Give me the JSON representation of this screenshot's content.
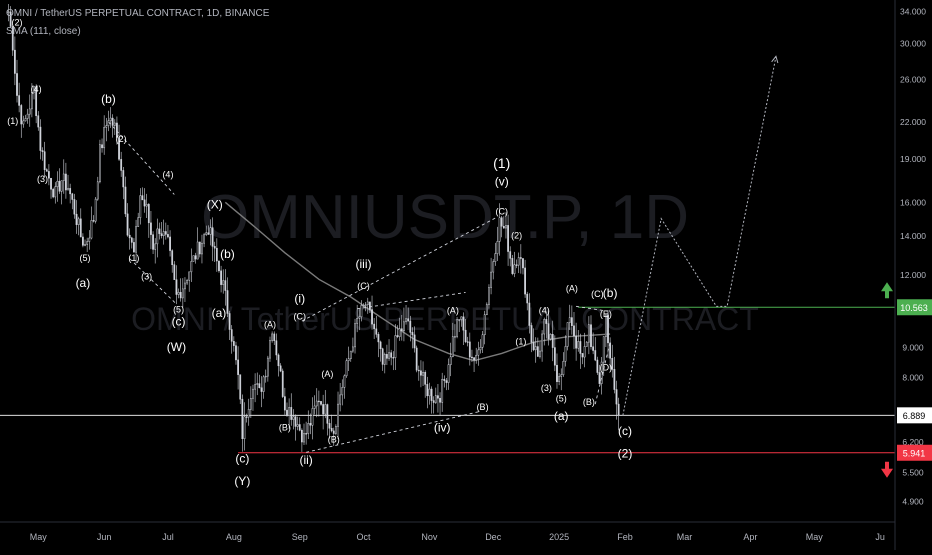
{
  "header": {
    "title": "OMNI / TetherUS PERPETUAL CONTRACT, 1D, BINANCE",
    "indicator": "SMA (111, close)"
  },
  "watermark": {
    "symbol": "OMNIUSDT.P, 1D",
    "name": "OMNI / TetherUS PERPETUAL CONTRACT"
  },
  "colors": {
    "background": "#000000",
    "bull": "#d1d4dc",
    "bear": "#d1d4dc",
    "sma": "#7a7a7a",
    "resistance": "#4caf50",
    "support": "#f23645",
    "current_price": "#ffffff",
    "projection": "#b2b5be"
  },
  "chart_data": {
    "type": "candlestick",
    "y_scale": "log",
    "ylim": [
      4.7,
      34.5
    ],
    "y_ticks": [
      34.0,
      30.0,
      26.0,
      22.0,
      19.0,
      16.0,
      14.0,
      12.0,
      10.563,
      9.0,
      8.0,
      6.889,
      6.2,
      5.941,
      5.5,
      4.9
    ],
    "y_tick_labels": [
      "34.000",
      "30.000",
      "26.000",
      "22.000",
      "19.000",
      "16.000",
      "14.000",
      "12.000",
      "10.563",
      "9.000",
      "8.000",
      "6.889",
      "6.200",
      "5.941",
      "5.500",
      "4.900"
    ],
    "x_labels": [
      "May",
      "Jun",
      "Jul",
      "Aug",
      "Sep",
      "Oct",
      "Nov",
      "Dec",
      "2025",
      "Feb",
      "Mar",
      "Apr",
      "May",
      "Ju"
    ],
    "x_label_dates": [
      "2024-05-01",
      "2024-06-01",
      "2024-07-01",
      "2024-08-01",
      "2024-09-01",
      "2024-10-01",
      "2024-11-01",
      "2024-12-01",
      "2025-01-01",
      "2025-02-01",
      "2025-03-01",
      "2025-04-01",
      "2025-05-01",
      "2025-06-01"
    ],
    "xlim": [
      "2024-04-13",
      "2025-06-08"
    ],
    "price_path": [
      [
        "2024-04-17",
        34.0
      ],
      [
        "2024-04-19",
        30.0
      ],
      [
        "2024-04-21",
        24.5
      ],
      [
        "2024-04-24",
        21.5
      ],
      [
        "2024-04-27",
        23.5
      ],
      [
        "2024-04-29",
        25.0
      ],
      [
        "2024-05-02",
        20.0
      ],
      [
        "2024-05-05",
        18.0
      ],
      [
        "2024-05-09",
        16.5
      ],
      [
        "2024-05-12",
        17.5
      ],
      [
        "2024-05-15",
        17.0
      ],
      [
        "2024-05-18",
        15.5
      ],
      [
        "2024-05-21",
        14.0
      ],
      [
        "2024-05-23",
        13.5
      ],
      [
        "2024-05-27",
        15.0
      ],
      [
        "2024-05-30",
        19.5
      ],
      [
        "2024-06-03",
        22.5
      ],
      [
        "2024-06-06",
        21.5
      ],
      [
        "2024-06-09",
        18.5
      ],
      [
        "2024-06-12",
        14.5
      ],
      [
        "2024-06-15",
        13.0
      ],
      [
        "2024-06-18",
        16.5
      ],
      [
        "2024-06-21",
        15.5
      ],
      [
        "2024-06-24",
        13.5
      ],
      [
        "2024-06-27",
        14.5
      ],
      [
        "2024-07-01",
        13.5
      ],
      [
        "2024-07-05",
        11.0
      ],
      [
        "2024-07-08",
        11.5
      ],
      [
        "2024-07-12",
        12.5
      ],
      [
        "2024-07-16",
        13.5
      ],
      [
        "2024-07-20",
        14.5
      ],
      [
        "2024-07-23",
        13.0
      ],
      [
        "2024-07-27",
        11.5
      ],
      [
        "2024-07-30",
        10.0
      ],
      [
        "2024-08-03",
        8.0
      ],
      [
        "2024-08-05",
        6.4
      ],
      [
        "2024-08-07",
        7.0
      ],
      [
        "2024-08-10",
        7.9
      ],
      [
        "2024-08-13",
        7.5
      ],
      [
        "2024-08-16",
        8.3
      ],
      [
        "2024-08-19",
        9.8
      ],
      [
        "2024-08-22",
        8.5
      ],
      [
        "2024-08-25",
        7.2
      ],
      [
        "2024-08-29",
        6.9
      ],
      [
        "2024-09-03",
        6.3
      ],
      [
        "2024-09-06",
        6.7
      ],
      [
        "2024-09-10",
        7.4
      ],
      [
        "2024-09-13",
        7.0
      ],
      [
        "2024-09-17",
        6.5
      ],
      [
        "2024-09-20",
        7.5
      ],
      [
        "2024-09-24",
        8.6
      ],
      [
        "2024-09-28",
        10.0
      ],
      [
        "2024-10-02",
        10.7
      ],
      [
        "2024-10-06",
        9.7
      ],
      [
        "2024-10-10",
        8.4
      ],
      [
        "2024-10-14",
        8.7
      ],
      [
        "2024-10-18",
        9.6
      ],
      [
        "2024-10-22",
        10.0
      ],
      [
        "2024-10-26",
        8.5
      ],
      [
        "2024-10-30",
        7.7
      ],
      [
        "2024-11-03",
        7.4
      ],
      [
        "2024-11-06",
        7.5
      ],
      [
        "2024-11-09",
        8.1
      ],
      [
        "2024-11-12",
        9.3
      ],
      [
        "2024-11-15",
        10.2
      ],
      [
        "2024-11-19",
        9.0
      ],
      [
        "2024-11-23",
        8.5
      ],
      [
        "2024-11-26",
        9.7
      ],
      [
        "2024-11-29",
        11.5
      ],
      [
        "2024-12-02",
        13.5
      ],
      [
        "2024-12-04",
        14.8
      ],
      [
        "2024-12-07",
        14.2
      ],
      [
        "2024-12-10",
        12.3
      ],
      [
        "2024-12-13",
        13.2
      ],
      [
        "2024-12-16",
        11.5
      ],
      [
        "2024-12-19",
        9.3
      ],
      [
        "2024-12-22",
        8.7
      ],
      [
        "2024-12-25",
        9.8
      ],
      [
        "2024-12-28",
        9.2
      ],
      [
        "2024-12-31",
        8.1
      ],
      [
        "2025-01-03",
        8.4
      ],
      [
        "2025-01-06",
        10.3
      ],
      [
        "2025-01-09",
        9.2
      ],
      [
        "2025-01-12",
        8.5
      ],
      [
        "2025-01-15",
        9.8
      ],
      [
        "2025-01-18",
        8.3
      ],
      [
        "2025-01-20",
        7.9
      ],
      [
        "2025-01-23",
        10.2
      ],
      [
        "2025-01-25",
        8.7
      ],
      [
        "2025-01-27",
        7.5
      ],
      [
        "2025-01-29",
        6.889
      ]
    ],
    "sma_111": [
      [
        "2024-07-28",
        16.0
      ],
      [
        "2024-08-10",
        14.6
      ],
      [
        "2024-08-25",
        13.1
      ],
      [
        "2024-09-10",
        11.8
      ],
      [
        "2024-09-25",
        11.0
      ],
      [
        "2024-10-10",
        10.1
      ],
      [
        "2024-10-25",
        9.3
      ],
      [
        "2024-11-10",
        8.8
      ],
      [
        "2024-11-22",
        8.55
      ],
      [
        "2024-12-05",
        8.8
      ],
      [
        "2024-12-20",
        9.2
      ],
      [
        "2025-01-05",
        9.4
      ],
      [
        "2025-01-25",
        9.5
      ]
    ],
    "horizontal_levels": [
      {
        "price": 10.563,
        "label": "10.563",
        "role": "resistance",
        "from": "2025-01-10"
      },
      {
        "price": 5.941,
        "label": "5.941",
        "role": "support",
        "from": "2024-08-03"
      },
      {
        "price": 6.889,
        "label": "6.889",
        "role": "current",
        "from": "2024-04-13"
      }
    ],
    "projection_path": [
      [
        "2025-01-31",
        6.889
      ],
      [
        "2025-02-18",
        15.0
      ],
      [
        "2025-03-16",
        10.6
      ],
      [
        "2025-03-21",
        10.6
      ],
      [
        "2025-04-13",
        28.5
      ]
    ],
    "wave_labels": [
      {
        "text": "(2)",
        "date": "2024-04-21",
        "price": 32.5,
        "size": "s"
      },
      {
        "text": "(1)",
        "date": "2024-04-19",
        "price": 22.0,
        "size": "s"
      },
      {
        "text": "(4)",
        "date": "2024-04-30",
        "price": 25.0,
        "size": "s"
      },
      {
        "text": "(3)",
        "date": "2024-05-03",
        "price": 17.5,
        "size": "s"
      },
      {
        "text": "(5)",
        "date": "2024-05-23",
        "price": 12.8,
        "size": "s"
      },
      {
        "text": "(a)",
        "date": "2024-05-22",
        "price": 11.6,
        "size": "m"
      },
      {
        "text": "(b)",
        "date": "2024-06-03",
        "price": 24.0,
        "size": "m"
      },
      {
        "text": "(2)",
        "date": "2024-06-09",
        "price": 20.5,
        "size": "s"
      },
      {
        "text": "(4)",
        "date": "2024-07-01",
        "price": 17.8,
        "size": "s"
      },
      {
        "text": "(1)",
        "date": "2024-06-15",
        "price": 12.8,
        "size": "s"
      },
      {
        "text": "(3)",
        "date": "2024-06-21",
        "price": 11.9,
        "size": "s"
      },
      {
        "text": "(5)",
        "date": "2024-07-06",
        "price": 10.45,
        "size": "s"
      },
      {
        "text": "(c)",
        "date": "2024-07-06",
        "price": 9.95,
        "size": "m"
      },
      {
        "text": "(W)",
        "date": "2024-07-05",
        "price": 9.0,
        "size": "m"
      },
      {
        "text": "(X)",
        "date": "2024-07-23",
        "price": 15.8,
        "size": "m"
      },
      {
        "text": "(b)",
        "date": "2024-07-29",
        "price": 13.0,
        "size": "m"
      },
      {
        "text": "(a)",
        "date": "2024-07-25",
        "price": 10.3,
        "size": "m"
      },
      {
        "text": "(A)",
        "date": "2024-08-18",
        "price": 9.85,
        "size": "s"
      },
      {
        "text": "(B)",
        "date": "2024-08-25",
        "price": 6.55,
        "size": "s"
      },
      {
        "text": "(C)",
        "date": "2024-09-01",
        "price": 10.15,
        "size": "s"
      },
      {
        "text": "(i)",
        "date": "2024-09-01",
        "price": 10.9,
        "size": "m"
      },
      {
        "text": "(c)",
        "date": "2024-08-05",
        "price": 5.79,
        "size": "m"
      },
      {
        "text": "(Y)",
        "date": "2024-08-05",
        "price": 5.3,
        "size": "m"
      },
      {
        "text": "(A)",
        "date": "2024-09-14",
        "price": 8.1,
        "size": "s"
      },
      {
        "text": "(B)",
        "date": "2024-09-17",
        "price": 6.25,
        "size": "s"
      },
      {
        "text": "(ii)",
        "date": "2024-09-04",
        "price": 5.75,
        "size": "m"
      },
      {
        "text": "(iii)",
        "date": "2024-10-01",
        "price": 12.5,
        "size": "m"
      },
      {
        "text": "(C)",
        "date": "2024-10-01",
        "price": 11.45,
        "size": "s"
      },
      {
        "text": "(A)",
        "date": "2024-11-12",
        "price": 10.4,
        "size": "s"
      },
      {
        "text": "(B)",
        "date": "2024-11-26",
        "price": 7.1,
        "size": "s"
      },
      {
        "text": "(iv)",
        "date": "2024-11-07",
        "price": 6.55,
        "size": "m"
      },
      {
        "text": "(1)",
        "date": "2024-12-05",
        "price": 18.6,
        "size": "l"
      },
      {
        "text": "(v)",
        "date": "2024-12-05",
        "price": 17.3,
        "size": "m"
      },
      {
        "text": "(C)",
        "date": "2024-12-05",
        "price": 15.4,
        "size": "s"
      },
      {
        "text": "(2)",
        "date": "2024-12-12",
        "price": 14.0,
        "size": "s"
      },
      {
        "text": "(1)",
        "date": "2024-12-14",
        "price": 9.2,
        "size": "s"
      },
      {
        "text": "(4)",
        "date": "2024-12-25",
        "price": 10.4,
        "size": "s"
      },
      {
        "text": "(3)",
        "date": "2024-12-26",
        "price": 7.65,
        "size": "s"
      },
      {
        "text": "(5)",
        "date": "2025-01-02",
        "price": 7.35,
        "size": "s"
      },
      {
        "text": "(a)",
        "date": "2025-01-02",
        "price": 6.85,
        "size": "m"
      },
      {
        "text": "(A)",
        "date": "2025-01-07",
        "price": 11.35,
        "size": "s"
      },
      {
        "text": "(C)",
        "date": "2025-01-19",
        "price": 11.1,
        "size": "s"
      },
      {
        "text": "(b)",
        "date": "2025-01-25",
        "price": 11.15,
        "size": "m"
      },
      {
        "text": "(E)",
        "date": "2025-01-23",
        "price": 10.25,
        "size": "s"
      },
      {
        "text": "(D)",
        "date": "2025-01-23",
        "price": 8.3,
        "size": "s"
      },
      {
        "text": "(B)",
        "date": "2025-01-15",
        "price": 7.25,
        "size": "s"
      },
      {
        "text": "(c)",
        "date": "2025-02-01",
        "price": 6.45,
        "size": "m"
      },
      {
        "text": "(2)",
        "date": "2025-02-01",
        "price": 5.91,
        "size": "m"
      }
    ],
    "dashed_lines": [
      [
        [
          "2024-06-03",
          22.0
        ],
        [
          "2024-07-04",
          16.5
        ]
      ],
      [
        [
          "2024-06-13",
          12.8
        ],
        [
          "2024-07-05",
          10.7
        ]
      ],
      [
        [
          "2024-09-02",
          10.0
        ],
        [
          "2024-12-03",
          15.1
        ]
      ],
      [
        [
          "2024-09-04",
          5.95
        ],
        [
          "2024-11-25",
          7.0
        ]
      ],
      [
        [
          "2024-09-28",
          10.5
        ],
        [
          "2024-11-18",
          11.2
        ]
      ],
      [
        [
          "2025-01-09",
          10.6
        ],
        [
          "2025-01-24",
          10.4
        ]
      ],
      [
        [
          "2025-01-18",
          7.2
        ],
        [
          "2025-01-25",
          9.2
        ]
      ]
    ]
  }
}
